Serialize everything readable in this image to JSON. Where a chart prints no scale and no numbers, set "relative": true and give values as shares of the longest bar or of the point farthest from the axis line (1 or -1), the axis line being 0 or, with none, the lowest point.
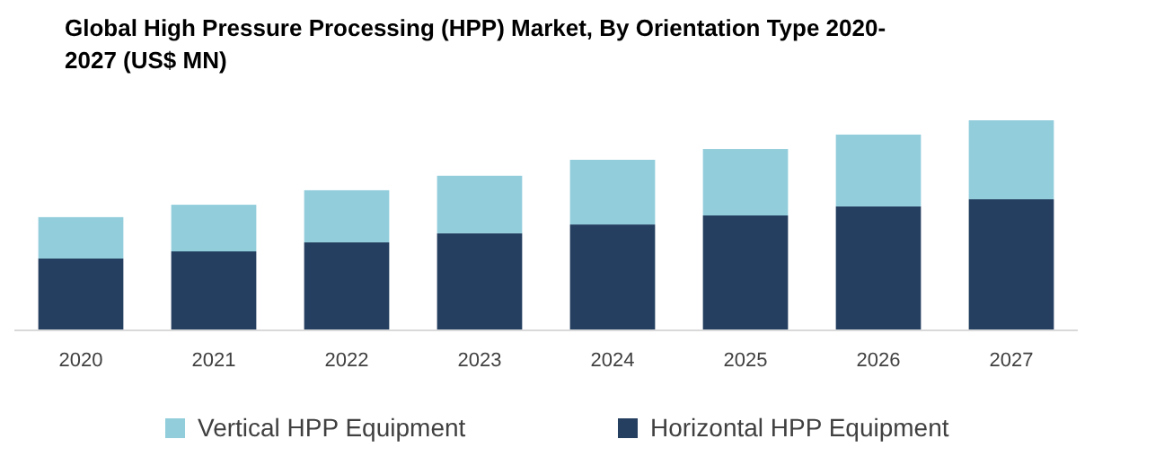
{
  "chart_data": {
    "type": "bar",
    "title": "Global High Pressure Processing (HPP) Market, By Orientation Type 2020-2027 (US$ MN)",
    "categories": [
      "2020",
      "2021",
      "2022",
      "2023",
      "2024",
      "2025",
      "2026",
      "2027"
    ],
    "stacked": true,
    "relative": true,
    "legend": "bottom",
    "series": [
      {
        "name": "Horizontal HPP Equipment",
        "color": "#243f60",
        "values": [
          0.342,
          0.376,
          0.419,
          0.462,
          0.504,
          0.547,
          0.59,
          0.624
        ]
      },
      {
        "name": "Vertical HPP Equipment",
        "color": "#92cddc",
        "values": [
          0.197,
          0.222,
          0.248,
          0.274,
          0.308,
          0.316,
          0.342,
          0.376
        ]
      }
    ]
  }
}
